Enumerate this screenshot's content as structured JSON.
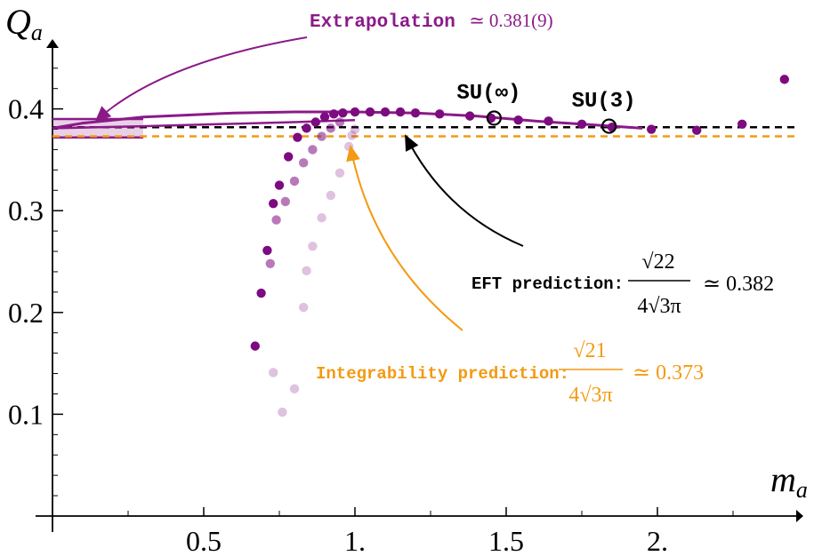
{
  "chart_data": {
    "type": "scatter",
    "title": "",
    "xlabel": "m_a",
    "ylabel": "Q_a",
    "xlim": [
      0,
      2.45
    ],
    "ylim": [
      0.0,
      0.455
    ],
    "x_ticks": [
      {
        "value": 0.5,
        "label": "0.5"
      },
      {
        "value": 1.0,
        "label": "1."
      },
      {
        "value": 1.5,
        "label": "1.5"
      },
      {
        "value": 2.0,
        "label": "2."
      }
    ],
    "y_ticks": [
      {
        "value": 0.1,
        "label": "0.1"
      },
      {
        "value": 0.2,
        "label": "0.2"
      },
      {
        "value": 0.3,
        "label": "0.3"
      },
      {
        "value": 0.4,
        "label": "0.4"
      }
    ],
    "colors": {
      "purple": "#8b1a89",
      "dark_purple": "#7d0b80",
      "orange": "#f39a12",
      "black": "#000000"
    },
    "reference_lines": [
      {
        "name": "EFT prediction",
        "y": 0.382,
        "color": "#000000",
        "style": "dashed"
      },
      {
        "name": "Integrability prediction",
        "y": 0.373,
        "color": "#f39a12",
        "style": "dashed"
      }
    ],
    "extrapolation_band": {
      "x_range": [
        0,
        0.3
      ],
      "center": 0.381,
      "error": 0.009
    },
    "series": [
      {
        "name": "dark points",
        "color": "#7d0b80",
        "opacity": 1.0,
        "points": [
          [
            0.67,
            0.167
          ],
          [
            0.69,
            0.219
          ],
          [
            0.71,
            0.261
          ],
          [
            0.73,
            0.307
          ],
          [
            0.75,
            0.325
          ],
          [
            0.78,
            0.353
          ],
          [
            0.81,
            0.372
          ],
          [
            0.84,
            0.381
          ],
          [
            0.87,
            0.387
          ],
          [
            0.9,
            0.392
          ],
          [
            0.93,
            0.395
          ],
          [
            0.96,
            0.396
          ],
          [
            1.0,
            0.397
          ],
          [
            1.05,
            0.397
          ],
          [
            1.1,
            0.397
          ],
          [
            1.15,
            0.397
          ],
          [
            1.2,
            0.396
          ],
          [
            1.28,
            0.395
          ],
          [
            1.38,
            0.393
          ],
          [
            1.45,
            0.391
          ],
          [
            1.54,
            0.389
          ],
          [
            1.64,
            0.388
          ],
          [
            1.75,
            0.385
          ],
          [
            1.85,
            0.382
          ],
          [
            1.98,
            0.38
          ],
          [
            2.13,
            0.379
          ],
          [
            2.28,
            0.385
          ],
          [
            2.42,
            0.429
          ]
        ]
      },
      {
        "name": "medium points",
        "color": "#7d0b80",
        "opacity": 0.55,
        "points": [
          [
            0.72,
            0.248
          ],
          [
            0.74,
            0.291
          ],
          [
            0.77,
            0.309
          ],
          [
            0.8,
            0.329
          ],
          [
            0.83,
            0.347
          ],
          [
            0.86,
            0.36
          ],
          [
            0.89,
            0.373
          ],
          [
            0.92,
            0.381
          ],
          [
            0.95,
            0.387
          ]
        ]
      },
      {
        "name": "light points",
        "color": "#7d0b80",
        "opacity": 0.25,
        "points": [
          [
            0.73,
            0.141
          ],
          [
            0.76,
            0.102
          ],
          [
            0.8,
            0.125
          ],
          [
            0.83,
            0.205
          ],
          [
            0.84,
            0.241
          ],
          [
            0.86,
            0.265
          ],
          [
            0.89,
            0.293
          ],
          [
            0.92,
            0.315
          ],
          [
            0.95,
            0.337
          ],
          [
            0.98,
            0.363
          ],
          [
            0.99,
            0.374
          ],
          [
            1.0,
            0.38
          ]
        ]
      }
    ],
    "fit_curve": {
      "color": "#8b1a89",
      "points": [
        [
          0.0,
          0.381
        ],
        [
          0.1,
          0.386
        ],
        [
          0.2,
          0.389
        ],
        [
          0.3,
          0.392
        ],
        [
          0.45,
          0.394
        ],
        [
          0.6,
          0.396
        ],
        [
          0.8,
          0.397
        ],
        [
          1.0,
          0.397
        ],
        [
          1.2,
          0.396
        ],
        [
          1.4,
          0.393
        ],
        [
          1.6,
          0.388
        ],
        [
          1.8,
          0.384
        ],
        [
          1.95,
          0.381
        ]
      ],
      "lower_branch": [
        [
          0.0,
          0.381
        ],
        [
          0.3,
          0.383
        ],
        [
          0.55,
          0.385
        ],
        [
          0.8,
          0.387
        ],
        [
          1.0,
          0.389
        ]
      ]
    },
    "su_markers": [
      {
        "label": "SU(∞)",
        "x": 1.46,
        "y": 0.391
      },
      {
        "label": "SU(3)",
        "x": 1.84,
        "y": 0.383
      }
    ],
    "annotations": {
      "extrapolation": {
        "label": "Extrapolation",
        "value": "≃ 0.381(9)"
      },
      "eft": {
        "label": "EFT prediction:",
        "numerator": "√22",
        "denominator": "4√3π",
        "value": "≃ 0.382"
      },
      "integrability": {
        "label": "Integrability prediction:",
        "numerator": "√21",
        "denominator": "4√3π",
        "value": "≃ 0.373"
      }
    }
  }
}
